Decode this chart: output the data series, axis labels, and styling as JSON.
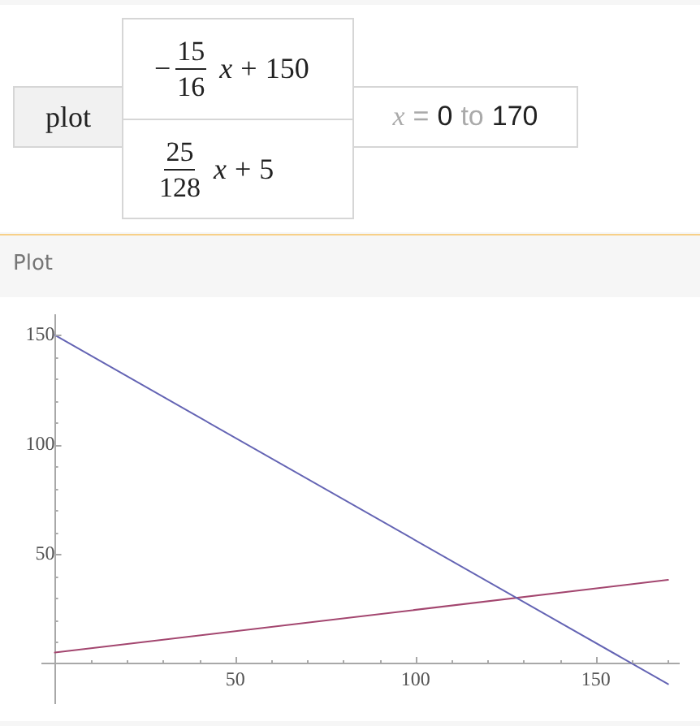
{
  "chart_data": {
    "type": "line",
    "title": "Plot",
    "annotations": [
      "plot",
      "−",
      "15",
      "16",
      "x + 150",
      "25",
      "128",
      "x + 5",
      "x = 0 to 170"
    ],
    "x": [
      0,
      170
    ],
    "series": [
      {
        "color": "#6464b4",
        "values": [
          150,
          -9.4
        ]
      },
      {
        "color": "#a3466f",
        "values": [
          5,
          38.2
        ]
      }
    ],
    "xlim": [
      -3.5,
      173
    ],
    "ylim": [
      -18,
      159
    ],
    "xticks": [
      {
        "value": 10,
        "label": null
      },
      {
        "value": 20,
        "label": null
      },
      {
        "value": 30,
        "label": null
      },
      {
        "value": 40,
        "label": null
      },
      50,
      {
        "value": 60,
        "label": null
      },
      {
        "value": 70,
        "label": null
      },
      {
        "value": 80,
        "label": null
      },
      {
        "value": 90,
        "label": null
      },
      100,
      {
        "value": 110,
        "label": null
      },
      {
        "value": 120,
        "label": null
      },
      {
        "value": 130,
        "label": null
      },
      {
        "value": 140,
        "label": null
      },
      150,
      {
        "value": 160,
        "label": null
      },
      {
        "value": 170,
        "label": null
      }
    ],
    "yticks": [
      {
        "value": 10,
        "label": null
      },
      {
        "value": 20,
        "label": null
      },
      {
        "value": 30,
        "label": null
      },
      {
        "value": 40,
        "label": null
      },
      50,
      {
        "value": 60,
        "label": null
      },
      {
        "value": 70,
        "label": null
      },
      {
        "value": 80,
        "label": null
      },
      {
        "value": 90,
        "label": null
      },
      100,
      {
        "value": 110,
        "label": null
      },
      {
        "value": 120,
        "label": null
      },
      {
        "value": 130,
        "label": null
      },
      {
        "value": 140,
        "label": null
      },
      150
    ],
    "marker": "none",
    "line_style": "solid"
  }
}
